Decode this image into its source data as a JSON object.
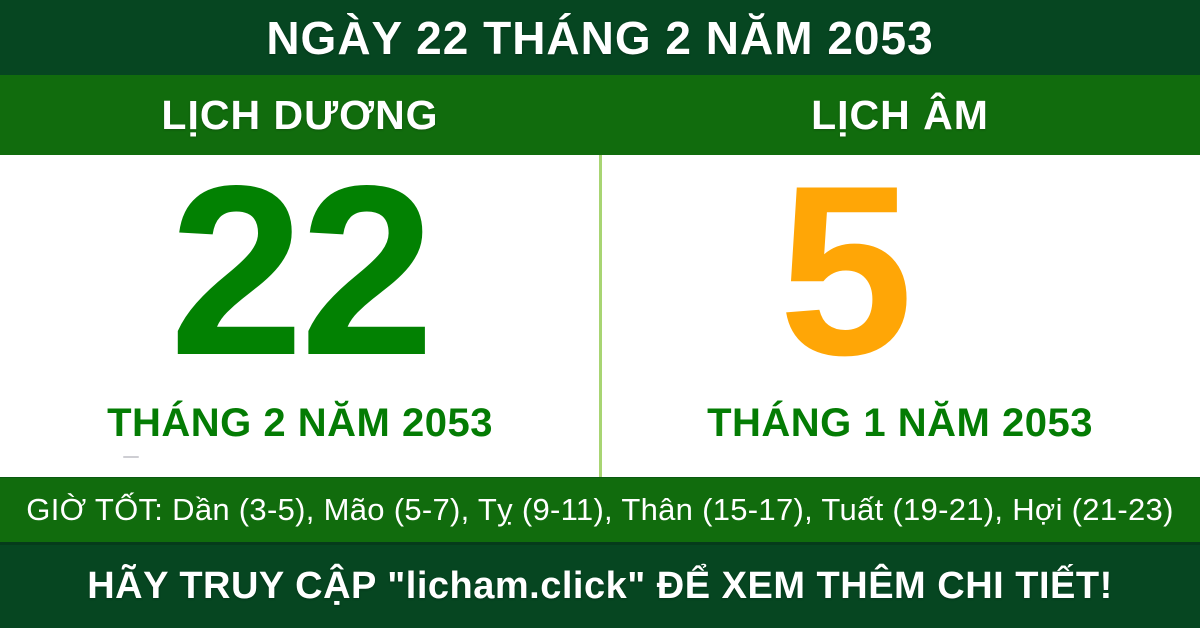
{
  "header": {
    "title": "NGÀY 22 THÁNG 2 NĂM 2053"
  },
  "calendar": {
    "solar": {
      "label": "LỊCH DƯƠNG",
      "day": "22",
      "month_year": "THÁNG 2 NĂM 2053"
    },
    "lunar": {
      "label": "LỊCH ÂM",
      "day": "5",
      "month_year": "THÁNG 1 NĂM 2053"
    }
  },
  "good_hours": {
    "text": "GIỜ TỐT: Dần (3-5), Mão (5-7), Tỵ (9-11), Thân (15-17), Tuất (19-21), Hợi (21-23)"
  },
  "footer": {
    "text": "HÃY TRUY CẬP \"licham.click\" ĐỂ XEM THÊM CHI TIẾT!"
  },
  "colors": {
    "header_footer_dark_green": "#064621",
    "bar_medium_green": "#116c0d",
    "solar_day_green": "#028102",
    "month_text_green": "#047c04",
    "lunar_day_orange": "#ffa606",
    "panel_divider_light_green": "#a8d573",
    "panel_background": "#ffffff",
    "text_white": "#ffffff"
  }
}
